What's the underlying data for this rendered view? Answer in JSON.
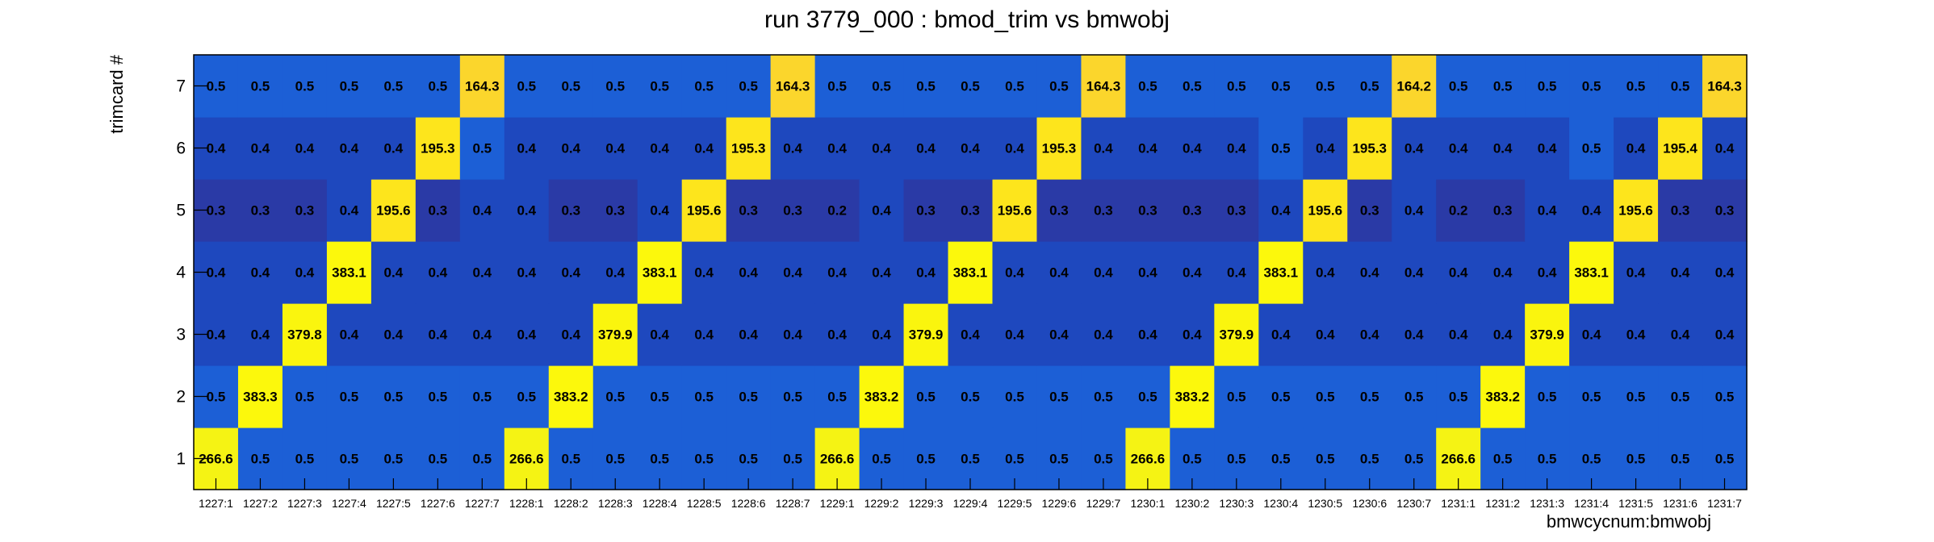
{
  "chart_data": {
    "type": "heatmap",
    "title": "run 3779_000 : bmod_trim vs bmwobj",
    "xlabel": "bmwcycnum:bmwobj",
    "ylabel": "trimcard #",
    "x_categories": [
      "1227:1",
      "1227:2",
      "1227:3",
      "1227:4",
      "1227:5",
      "1227:6",
      "1227:7",
      "1228:1",
      "1228:2",
      "1228:3",
      "1228:4",
      "1228:5",
      "1228:6",
      "1228:7",
      "1229:1",
      "1229:2",
      "1229:3",
      "1229:4",
      "1229:5",
      "1229:6",
      "1229:7",
      "1230:1",
      "1230:2",
      "1230:3",
      "1230:4",
      "1230:5",
      "1230:6",
      "1230:7",
      "1231:1",
      "1231:2",
      "1231:3",
      "1231:4",
      "1231:5",
      "1231:6",
      "1231:7"
    ],
    "y_categories": [
      "1",
      "2",
      "3",
      "4",
      "5",
      "6",
      "7"
    ],
    "values": [
      [
        266.6,
        0.5,
        0.5,
        0.5,
        0.5,
        0.5,
        0.5,
        266.6,
        0.5,
        0.5,
        0.5,
        0.5,
        0.5,
        0.5,
        266.6,
        0.5,
        0.5,
        0.5,
        0.5,
        0.5,
        0.5,
        266.6,
        0.5,
        0.5,
        0.5,
        0.5,
        0.5,
        0.5,
        266.6,
        0.5,
        0.5,
        0.5,
        0.5,
        0.5,
        0.5
      ],
      [
        0.5,
        383.3,
        0.5,
        0.5,
        0.5,
        0.5,
        0.5,
        0.5,
        383.2,
        0.5,
        0.5,
        0.5,
        0.5,
        0.5,
        0.5,
        383.2,
        0.5,
        0.5,
        0.5,
        0.5,
        0.5,
        0.5,
        383.2,
        0.5,
        0.5,
        0.5,
        0.5,
        0.5,
        0.5,
        383.2,
        0.5,
        0.5,
        0.5,
        0.5,
        0.5
      ],
      [
        0.4,
        0.4,
        379.8,
        0.4,
        0.4,
        0.4,
        0.4,
        0.4,
        0.4,
        379.9,
        0.4,
        0.4,
        0.4,
        0.4,
        0.4,
        0.4,
        379.9,
        0.4,
        0.4,
        0.4,
        0.4,
        0.4,
        0.4,
        379.9,
        0.4,
        0.4,
        0.4,
        0.4,
        0.4,
        0.4,
        379.9,
        0.4,
        0.4,
        0.4,
        0.4
      ],
      [
        0.4,
        0.4,
        0.4,
        383.1,
        0.4,
        0.4,
        0.4,
        0.4,
        0.4,
        0.4,
        383.1,
        0.4,
        0.4,
        0.4,
        0.4,
        0.4,
        0.4,
        383.1,
        0.4,
        0.4,
        0.4,
        0.4,
        0.4,
        0.4,
        383.1,
        0.4,
        0.4,
        0.4,
        0.4,
        0.4,
        0.4,
        383.1,
        0.4,
        0.4,
        0.4
      ],
      [
        0.3,
        0.3,
        0.3,
        0.4,
        195.6,
        0.3,
        0.4,
        0.4,
        0.3,
        0.3,
        0.4,
        195.6,
        0.3,
        0.3,
        0.2,
        0.4,
        0.3,
        0.3,
        195.6,
        0.3,
        0.3,
        0.3,
        0.3,
        0.3,
        0.4,
        195.6,
        0.3,
        0.4,
        0.2,
        0.3,
        0.4,
        0.4,
        195.6,
        0.3,
        0.3
      ],
      [
        0.4,
        0.4,
        0.4,
        0.4,
        0.4,
        195.3,
        0.5,
        0.4,
        0.4,
        0.4,
        0.4,
        0.4,
        195.3,
        0.4,
        0.4,
        0.4,
        0.4,
        0.4,
        0.4,
        195.3,
        0.4,
        0.4,
        0.4,
        0.4,
        0.5,
        0.4,
        195.3,
        0.4,
        0.4,
        0.4,
        0.4,
        0.5,
        0.4,
        195.4,
        0.4
      ],
      [
        0.5,
        0.5,
        0.5,
        0.5,
        0.5,
        0.5,
        164.3,
        0.5,
        0.5,
        0.5,
        0.5,
        0.5,
        0.5,
        164.3,
        0.5,
        0.5,
        0.5,
        0.5,
        0.5,
        0.5,
        164.3,
        0.5,
        0.5,
        0.5,
        0.5,
        0.5,
        0.5,
        164.2,
        0.5,
        0.5,
        0.5,
        0.5,
        0.5,
        0.5,
        164.3
      ]
    ],
    "colors": {
      "v_0.2": "#2a3aa6",
      "v_0.3": "#2a3aa6",
      "v_0.4": "#1e48be",
      "v_0.5": "#1c5fd6",
      "v_164": "#fbd62c",
      "v_195": "#fde51c",
      "v_266": "#f5f314",
      "v_379": "#faf50e",
      "v_383": "#fcf80c"
    },
    "grid": false,
    "legend": "none"
  }
}
